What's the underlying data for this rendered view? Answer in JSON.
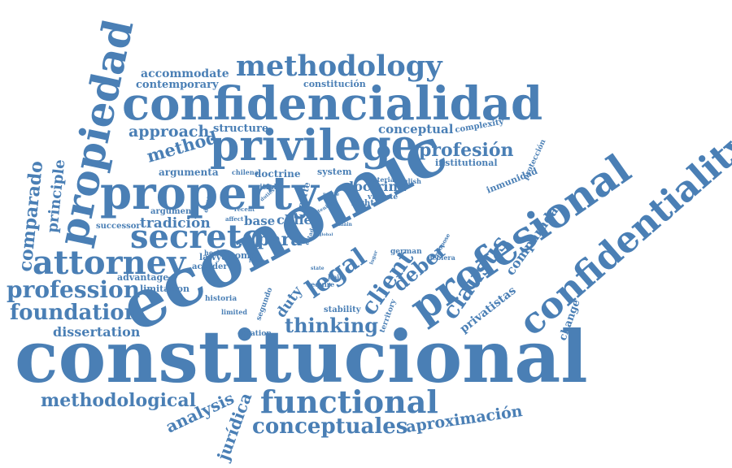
{
  "color": "#4a7fb5",
  "words": [
    {
      "text": "constitucional"
    },
    {
      "text": "economic"
    },
    {
      "text": "confidencialidad"
    },
    {
      "text": "property"
    },
    {
      "text": "privilege"
    },
    {
      "text": "profesional"
    },
    {
      "text": "confidentiality"
    },
    {
      "text": "propiedad"
    },
    {
      "text": "methodology"
    },
    {
      "text": "attorney"
    },
    {
      "text": "secreto"
    },
    {
      "text": "functional"
    },
    {
      "text": "profession"
    },
    {
      "text": "foundation"
    },
    {
      "text": "conceptuales"
    },
    {
      "text": "methodological"
    },
    {
      "text": "clausus"
    },
    {
      "text": "thinking"
    },
    {
      "text": "legal"
    },
    {
      "text": "client"
    },
    {
      "text": "deber"
    },
    {
      "text": "comparado"
    },
    {
      "text": "principle"
    },
    {
      "text": "profesión"
    },
    {
      "text": "method"
    },
    {
      "text": "approach"
    },
    {
      "text": "aproximación"
    },
    {
      "text": "analysis"
    },
    {
      "text": "jurídica"
    },
    {
      "text": "accommodate"
    },
    {
      "text": "contemporary"
    },
    {
      "text": "dissertation"
    },
    {
      "text": "para"
    },
    {
      "text": "chile"
    },
    {
      "text": "doctrina"
    },
    {
      "text": "conceptual"
    },
    {
      "text": "tradición"
    },
    {
      "text": "comparada"
    },
    {
      "text": "privatistas"
    },
    {
      "text": "duty"
    },
    {
      "text": "structure"
    },
    {
      "text": "argumenta"
    },
    {
      "text": "doctrine"
    },
    {
      "text": "system"
    },
    {
      "text": "institutional"
    },
    {
      "text": "advantage"
    },
    {
      "text": "limitation"
    },
    {
      "text": "change"
    },
    {
      "text": "base"
    },
    {
      "text": "successor"
    },
    {
      "text": "argument"
    },
    {
      "text": "constitución"
    },
    {
      "text": "complexity"
    },
    {
      "text": "inmunidad"
    },
    {
      "text": "protección"
    },
    {
      "text": "stability"
    },
    {
      "text": "territory"
    },
    {
      "text": "right"
    },
    {
      "text": "vigente"
    },
    {
      "text": "materia"
    },
    {
      "text": "english"
    },
    {
      "text": "chilena"
    },
    {
      "text": "demand"
    },
    {
      "text": "parte"
    },
    {
      "text": "lawyer"
    },
    {
      "text": "acceder"
    },
    {
      "text": "hechos"
    },
    {
      "text": "como"
    },
    {
      "text": "historia"
    },
    {
      "text": "segundo"
    },
    {
      "text": "creation"
    },
    {
      "text": "limited"
    },
    {
      "text": "require"
    },
    {
      "text": "hoja"
    },
    {
      "text": "german"
    },
    {
      "text": "debiera"
    },
    {
      "text": "propose"
    },
    {
      "text": "pitfall"
    },
    {
      "text": "recent"
    },
    {
      "text": "duties"
    },
    {
      "text": "affect"
    },
    {
      "text": "partie"
    },
    {
      "text": "tenido"
    },
    {
      "text": "main"
    },
    {
      "text": "estado"
    },
    {
      "text": "forma"
    },
    {
      "text": "state"
    },
    {
      "text": "lugar"
    },
    {
      "text": "global"
    }
  ]
}
